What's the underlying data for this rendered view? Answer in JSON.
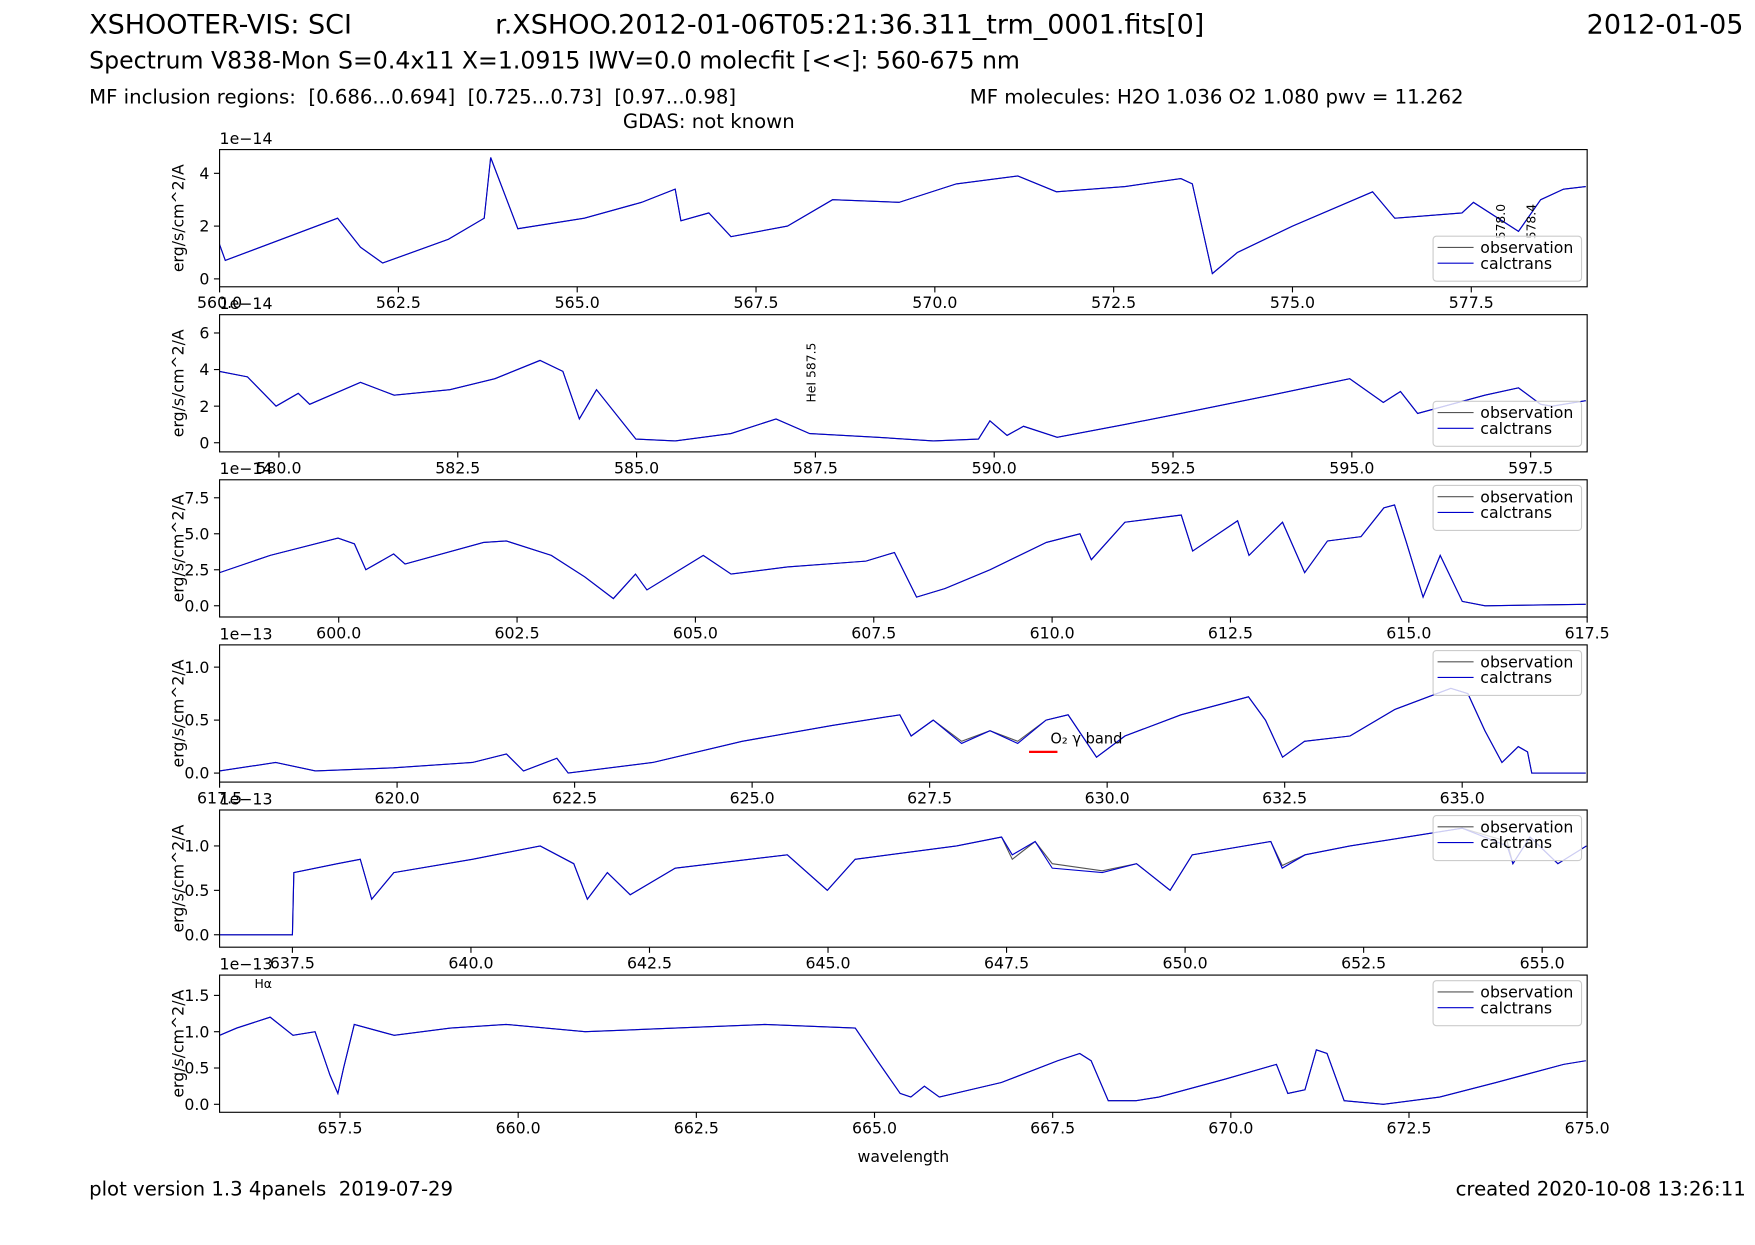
{
  "header": {
    "title": "XSHOOTER-VIS: SCI",
    "file": "r.XSHOO.2012-01-06T05:21:36.311_trm_0001.fits[0]",
    "date": "2012-01-05",
    "subtitle": "Spectrum V838-Mon S=0.4x11 X=1.0915 IWV=0.0 molecfit [<<]: 560-675 nm",
    "regions": "MF inclusion regions:  [0.686...0.694]  [0.725...0.73]  [0.97...0.98]",
    "molecules": "MF molecules: H2O 1.036 O2 1.080 pwv = 11.262",
    "gdas": "GDAS: not known"
  },
  "footer": {
    "version": "plot version 1.3 4panels  2019-07-29",
    "created": "created 2020-10-08 13:26:11"
  },
  "chart_data": [
    {
      "type": "line",
      "ylabel": "erg/s/cm^2/A",
      "offset_label": "1e−14",
      "legend": "lower right",
      "xlim": [
        560,
        579.12
      ],
      "ylim": [
        -0.3,
        4.9
      ],
      "xticks": [
        {
          "value": 560,
          "label": "560.0"
        },
        562.5,
        {
          "value": 565,
          "label": "565.0"
        },
        567.5,
        {
          "value": 570,
          "label": "570.0"
        },
        572.5,
        {
          "value": 575,
          "label": "575.0"
        },
        577.5
      ],
      "yticks": [
        0,
        2,
        4
      ],
      "x": [
        560,
        560.08,
        561.65,
        561.97,
        562.28,
        563.2,
        563.7,
        563.79,
        564.17,
        565.1,
        565.9,
        566.37,
        566.45,
        566.84,
        567.15,
        567.94,
        568.57,
        569.5,
        570.3,
        571.16,
        571.7,
        572.66,
        573.44,
        573.6,
        573.88,
        574.23,
        575.0,
        576.12,
        576.43,
        577.37,
        577.53,
        578.16,
        578.47,
        578.79,
        579.1
      ],
      "series": [
        {
          "name": "observation",
          "color": "#555555",
          "values": [
            1.3,
            0.7,
            2.3,
            1.2,
            0.6,
            1.5,
            2.3,
            4.6,
            1.9,
            2.3,
            2.9,
            3.4,
            2.2,
            2.5,
            1.6,
            2.0,
            3.0,
            2.9,
            3.6,
            3.9,
            3.3,
            3.5,
            3.8,
            3.6,
            0.2,
            1.0,
            2.0,
            3.3,
            2.3,
            2.5,
            2.9,
            1.8,
            3.0,
            3.4,
            3.5
          ]
        },
        {
          "name": "calctrans",
          "color": "#0000cc",
          "values": [
            1.3,
            0.7,
            2.3,
            1.2,
            0.6,
            1.5,
            2.3,
            4.6,
            1.9,
            2.3,
            2.9,
            3.4,
            2.2,
            2.5,
            1.6,
            2.0,
            3.0,
            2.9,
            3.6,
            3.9,
            3.3,
            3.5,
            3.8,
            3.6,
            0.2,
            1.0,
            2.0,
            3.3,
            2.3,
            2.5,
            2.9,
            1.8,
            3.0,
            3.4,
            3.5
          ]
        }
      ],
      "annotations": [
        {
          "text": "578.0",
          "x": 577.97,
          "y": 1.5,
          "rotate": true
        },
        {
          "text": "578.4",
          "x": 578.4,
          "y": 1.5,
          "rotate": true
        }
      ]
    },
    {
      "type": "line",
      "ylabel": "erg/s/cm^2/A",
      "offset_label": "1e−14",
      "legend": "lower right",
      "xlim": [
        579.17,
        598.29
      ],
      "ylim": [
        -0.5,
        7
      ],
      "xticks": [
        {
          "value": 580,
          "label": "580.0"
        },
        582.5,
        {
          "value": 585,
          "label": "585.0"
        },
        587.5,
        {
          "value": 590,
          "label": "590.0"
        },
        592.5,
        {
          "value": 595,
          "label": "595.0"
        },
        597.5
      ],
      "yticks": [
        0,
        2,
        4,
        6
      ],
      "x": [
        579.17,
        579.56,
        579.96,
        580.27,
        580.43,
        581.14,
        581.61,
        582.39,
        583.02,
        583.65,
        583.97,
        584.2,
        584.44,
        584.99,
        585.54,
        586.32,
        586.95,
        587.42,
        588.37,
        589.15,
        589.78,
        589.94,
        590.18,
        590.41,
        590.88,
        591.83,
        592.61,
        593.87,
        594.97,
        595.44,
        595.68,
        595.92,
        596.86,
        597.33,
        597.64,
        597.8,
        598.27
      ],
      "series": [
        {
          "name": "observation",
          "color": "#555555",
          "values": [
            3.9,
            3.6,
            2.0,
            2.7,
            2.1,
            3.3,
            2.6,
            2.9,
            3.5,
            4.5,
            3.9,
            1.3,
            2.9,
            0.2,
            0.1,
            0.5,
            1.3,
            0.5,
            0.3,
            0.1,
            0.2,
            1.2,
            0.4,
            0.9,
            0.3,
            1.0,
            1.6,
            2.6,
            3.5,
            2.2,
            2.8,
            1.6,
            2.6,
            3.0,
            2.1,
            2.0,
            2.3
          ]
        },
        {
          "name": "calctrans",
          "color": "#0000cc",
          "values": [
            3.9,
            3.6,
            2.0,
            2.7,
            2.1,
            3.3,
            2.6,
            2.9,
            3.5,
            4.5,
            3.9,
            1.3,
            2.9,
            0.2,
            0.1,
            0.5,
            1.3,
            0.5,
            0.3,
            0.1,
            0.2,
            1.2,
            0.4,
            0.9,
            0.3,
            1.0,
            1.6,
            2.6,
            3.5,
            2.2,
            2.8,
            1.6,
            2.6,
            3.0,
            2.1,
            2.0,
            2.3
          ]
        }
      ],
      "annotations": [
        {
          "text": "HeI 587.5",
          "x": 587.5,
          "y": 2.2,
          "rotate": true
        }
      ]
    },
    {
      "type": "line",
      "ylabel": "erg/s/cm^2/A",
      "offset_label": "1e−14",
      "legend": "upper right",
      "xlim": [
        598.33,
        617.5
      ],
      "ylim": [
        -0.78,
        8.75
      ],
      "xticks": [
        {
          "value": 600,
          "label": "600.0"
        },
        602.5,
        {
          "value": 605,
          "label": "605.0"
        },
        607.5,
        {
          "value": 610,
          "label": "610.0"
        },
        612.5,
        {
          "value": 615,
          "label": "615.0"
        },
        617.5
      ],
      "yticks": [
        {
          "value": 0,
          "label": "0.0"
        },
        2.5,
        {
          "value": 5,
          "label": "5.0"
        },
        7.5
      ],
      "x": [
        598.33,
        599.04,
        599.99,
        600.22,
        600.38,
        600.77,
        600.93,
        602.03,
        602.35,
        602.98,
        603.45,
        603.85,
        604.16,
        604.32,
        605.11,
        605.5,
        606.29,
        607.39,
        607.79,
        608.1,
        608.5,
        609.13,
        609.92,
        610.39,
        610.55,
        611.02,
        611.81,
        611.97,
        612.6,
        612.76,
        613.23,
        613.54,
        613.86,
        614.33,
        614.65,
        614.8,
        614.96,
        615.2,
        615.44,
        615.75,
        616.07,
        617.48
      ],
      "series": [
        {
          "name": "observation",
          "color": "#555555",
          "values": [
            2.3,
            3.5,
            4.7,
            4.3,
            2.5,
            3.6,
            2.9,
            4.4,
            4.5,
            3.5,
            2.0,
            0.5,
            2.2,
            1.1,
            3.5,
            2.2,
            2.7,
            3.1,
            3.7,
            0.6,
            1.2,
            2.5,
            4.4,
            5.0,
            3.2,
            5.8,
            6.3,
            3.8,
            5.9,
            3.5,
            5.8,
            2.3,
            4.5,
            4.8,
            6.8,
            7.0,
            4.5,
            0.6,
            3.5,
            0.3,
            0.0,
            0.1
          ]
        },
        {
          "name": "calctrans",
          "color": "#0000cc",
          "values": [
            2.3,
            3.5,
            4.7,
            4.3,
            2.5,
            3.6,
            2.9,
            4.4,
            4.5,
            3.5,
            2.0,
            0.5,
            2.2,
            1.1,
            3.5,
            2.2,
            2.7,
            3.1,
            3.7,
            0.6,
            1.2,
            2.5,
            4.4,
            5.0,
            3.2,
            5.8,
            6.3,
            3.8,
            5.9,
            3.5,
            5.8,
            2.3,
            4.5,
            4.8,
            6.8,
            7.0,
            4.5,
            0.6,
            3.5,
            0.3,
            0.0,
            0.1
          ]
        }
      ],
      "annotations": []
    },
    {
      "type": "line",
      "ylabel": "erg/s/cm^2/A",
      "offset_label": "1e−13",
      "legend": "upper right",
      "xlim": [
        617.5,
        636.76
      ],
      "ylim": [
        -0.085,
        1.21
      ],
      "xticks": [
        617.5,
        {
          "value": 620,
          "label": "620.0"
        },
        622.5,
        {
          "value": 625,
          "label": "625.0"
        },
        627.5,
        {
          "value": 630,
          "label": "630.0"
        },
        632.5,
        {
          "value": 635,
          "label": "635.0"
        }
      ],
      "yticks": [
        {
          "value": 0,
          "label": "0.0"
        },
        0.5,
        {
          "value": 1,
          "label": "1.0"
        }
      ],
      "x": [
        617.5,
        618.29,
        618.85,
        619.95,
        621.06,
        621.54,
        621.78,
        622.25,
        622.41,
        623.6,
        624.86,
        626.13,
        627.08,
        627.24,
        627.55,
        627.95,
        628.35,
        628.74,
        629.14,
        629.45,
        629.85,
        630.25,
        631.04,
        631.99,
        632.23,
        632.47,
        632.78,
        633.42,
        634.05,
        634.84,
        635.08,
        635.32,
        635.56,
        635.79,
        635.92,
        635.98,
        636.74
      ],
      "series": [
        {
          "name": "observation",
          "color": "#555555",
          "values": [
            0.02,
            0.1,
            0.02,
            0.05,
            0.1,
            0.18,
            0.02,
            0.14,
            0.0,
            0.1,
            0.3,
            0.45,
            0.55,
            0.35,
            0.5,
            0.3,
            0.4,
            0.3,
            0.5,
            0.55,
            0.15,
            0.35,
            0.55,
            0.72,
            0.5,
            0.15,
            0.3,
            0.35,
            0.6,
            0.8,
            0.75,
            0.4,
            0.1,
            0.25,
            0.2,
            0.0,
            0.0
          ]
        },
        {
          "name": "calctrans",
          "color": "#0000cc",
          "values": [
            0.02,
            0.1,
            0.02,
            0.05,
            0.1,
            0.18,
            0.02,
            0.14,
            0.0,
            0.1,
            0.3,
            0.45,
            0.55,
            0.35,
            0.5,
            0.28,
            0.4,
            0.28,
            0.5,
            0.55,
            0.15,
            0.35,
            0.55,
            0.72,
            0.5,
            0.15,
            0.3,
            0.35,
            0.6,
            0.8,
            0.75,
            0.4,
            0.1,
            0.25,
            0.2,
            0.0,
            0.0
          ]
        }
      ],
      "annotations": [
        {
          "text": "O₂ γ band",
          "x": 629.2,
          "y": 0.28,
          "color": "#ff0000",
          "span": [
            628.9,
            629.3
          ],
          "span_y": 0.2
        }
      ]
    },
    {
      "type": "line",
      "ylabel": "erg/s/cm^2/A",
      "offset_label": "1e−13",
      "legend": "upper right",
      "xlim": [
        636.48,
        655.63
      ],
      "ylim": [
        -0.14,
        1.405
      ],
      "xticks": [
        637.5,
        {
          "value": 640,
          "label": "640.0"
        },
        642.5,
        {
          "value": 645,
          "label": "645.0"
        },
        647.5,
        {
          "value": 650,
          "label": "650.0"
        },
        652.5,
        {
          "value": 655,
          "label": "655.0"
        }
      ],
      "yticks": [
        {
          "value": 0,
          "label": "0.0"
        },
        0.5,
        {
          "value": 1,
          "label": "1.0"
        }
      ],
      "x": [
        636.48,
        637.5,
        637.52,
        638.13,
        638.45,
        638.61,
        638.92,
        640.02,
        640.97,
        641.44,
        641.63,
        641.91,
        642.23,
        642.86,
        644.43,
        644.99,
        645.38,
        646.8,
        647.43,
        647.58,
        647.9,
        648.14,
        648.84,
        649.32,
        649.79,
        650.1,
        651.2,
        651.36,
        651.68,
        652.31,
        653.1,
        653.88,
        654.51,
        654.59,
        654.83,
        655.22,
        655.62
      ],
      "series": [
        {
          "name": "observation",
          "color": "#555555",
          "values": [
            0.0,
            0.0,
            0.7,
            0.8,
            0.85,
            0.4,
            0.7,
            0.85,
            1.0,
            0.8,
            0.4,
            0.7,
            0.45,
            0.75,
            0.9,
            0.5,
            0.85,
            1.0,
            1.1,
            0.85,
            1.05,
            0.8,
            0.72,
            0.8,
            0.5,
            0.9,
            1.05,
            0.78,
            0.9,
            1.0,
            1.1,
            1.2,
            1.05,
            0.8,
            1.1,
            0.8,
            1.0
          ]
        },
        {
          "name": "calctrans",
          "color": "#0000cc",
          "values": [
            0.0,
            0.0,
            0.7,
            0.8,
            0.85,
            0.4,
            0.7,
            0.85,
            1.0,
            0.8,
            0.4,
            0.7,
            0.45,
            0.75,
            0.9,
            0.5,
            0.85,
            1.0,
            1.1,
            0.9,
            1.05,
            0.75,
            0.7,
            0.8,
            0.5,
            0.9,
            1.05,
            0.75,
            0.9,
            1.0,
            1.1,
            1.2,
            1.0,
            0.8,
            1.1,
            0.8,
            1.0
          ]
        }
      ],
      "annotations": []
    },
    {
      "type": "line",
      "ylabel": "erg/s/cm^2/A",
      "xlabel": "wavelength",
      "offset_label": "1e−13",
      "legend": "upper right",
      "xlim": [
        655.81,
        675
      ],
      "ylim": [
        -0.11,
        1.78
      ],
      "xticks": [
        657.5,
        {
          "value": 660,
          "label": "660.0"
        },
        662.5,
        {
          "value": 665,
          "label": "665.0"
        },
        667.5,
        {
          "value": 670,
          "label": "670.0"
        },
        672.5,
        {
          "value": 675,
          "label": "675.0"
        }
      ],
      "yticks": [
        {
          "value": 0,
          "label": "0.0"
        },
        0.5,
        {
          "value": 1,
          "label": "1.0"
        },
        1.5
      ],
      "x": [
        655.81,
        656.05,
        656.52,
        656.84,
        657.15,
        657.36,
        657.47,
        657.55,
        657.7,
        658.26,
        659.05,
        659.83,
        660.94,
        662.2,
        663.46,
        664.73,
        665.04,
        665.36,
        665.51,
        665.7,
        665.91,
        666.78,
        667.57,
        667.88,
        668.04,
        668.28,
        668.67,
        668.99,
        669.93,
        670.64,
        670.8,
        671.04,
        671.2,
        671.35,
        671.59,
        672.14,
        672.93,
        673.72,
        674.67,
        674.98
      ],
      "series": [
        {
          "name": "observation",
          "color": "#555555",
          "values": [
            0.95,
            1.05,
            1.2,
            0.95,
            1.0,
            0.4,
            0.15,
            0.5,
            1.1,
            0.95,
            1.05,
            1.1,
            1.0,
            1.05,
            1.1,
            1.05,
            0.6,
            0.15,
            0.1,
            0.25,
            0.1,
            0.3,
            0.6,
            0.7,
            0.6,
            0.05,
            0.05,
            0.1,
            0.35,
            0.55,
            0.15,
            0.2,
            0.75,
            0.7,
            0.05,
            0.0,
            0.1,
            0.3,
            0.55,
            0.6
          ]
        },
        {
          "name": "calctrans",
          "color": "#0000cc",
          "values": [
            0.95,
            1.05,
            1.2,
            0.95,
            1.0,
            0.4,
            0.15,
            0.5,
            1.1,
            0.95,
            1.05,
            1.1,
            1.0,
            1.05,
            1.1,
            1.05,
            0.6,
            0.15,
            0.1,
            0.25,
            0.1,
            0.3,
            0.6,
            0.7,
            0.6,
            0.05,
            0.05,
            0.1,
            0.35,
            0.55,
            0.15,
            0.2,
            0.75,
            0.7,
            0.05,
            0.0,
            0.1,
            0.3,
            0.55,
            0.6
          ]
        }
      ],
      "annotations": [
        {
          "text": "Hα",
          "x": 656.3,
          "y": 1.6
        }
      ]
    }
  ]
}
